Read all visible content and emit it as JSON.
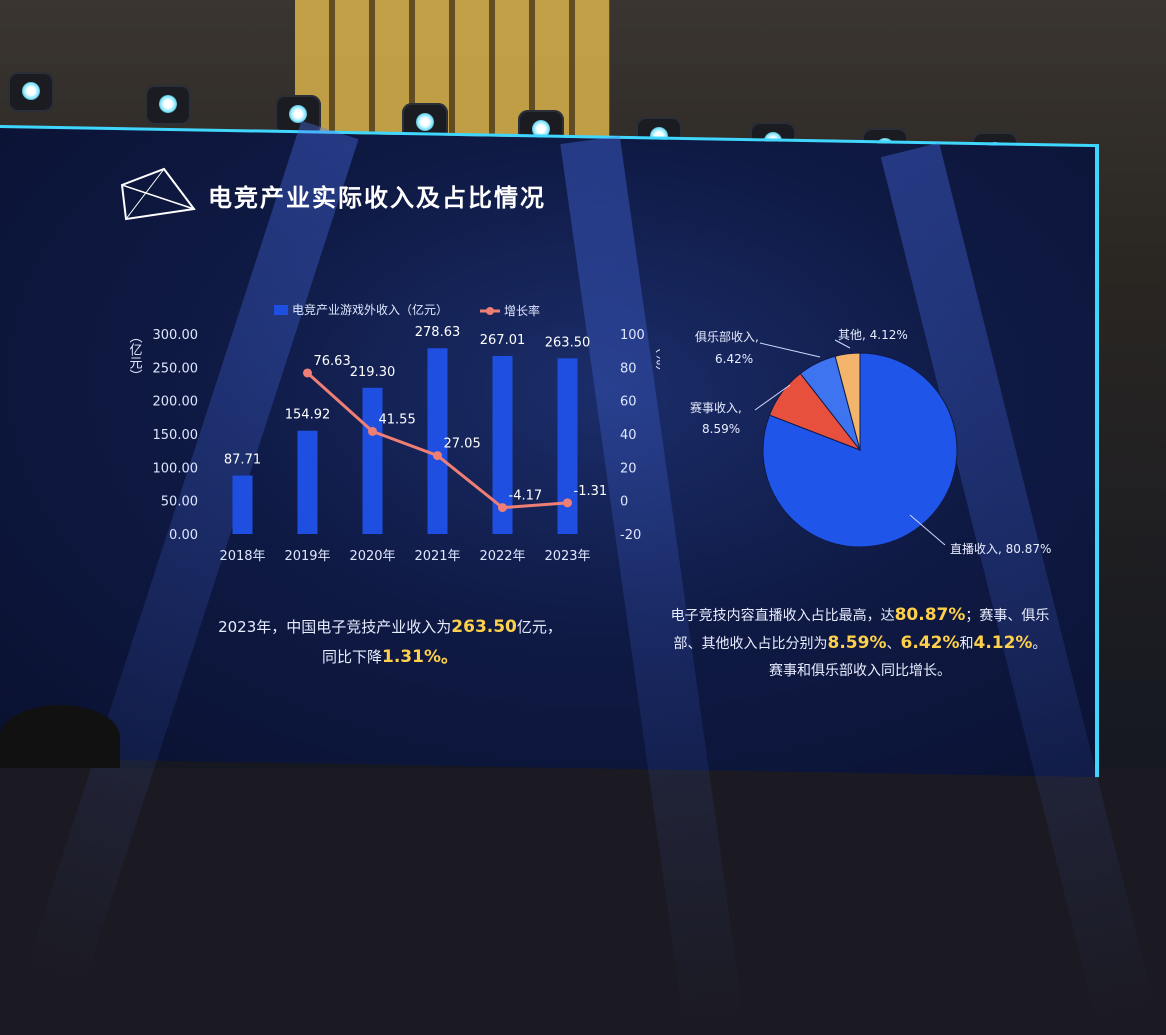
{
  "slide": {
    "title": "电竞产业实际收入及占比情况"
  },
  "chart_data": [
    {
      "type": "bar",
      "categories": [
        "2018年",
        "2019年",
        "2020年",
        "2021年",
        "2022年",
        "2023年"
      ],
      "series": [
        {
          "name": "电竞产业游戏外收入（亿元）",
          "type": "bar",
          "axis": "left",
          "values": [
            87.71,
            154.92,
            219.3,
            278.63,
            267.01,
            263.5
          ]
        },
        {
          "name": "增长率",
          "type": "line",
          "axis": "right",
          "values": [
            null,
            76.63,
            41.55,
            27.05,
            -4.17,
            -1.31
          ]
        }
      ],
      "bar_labels": [
        "87.71",
        "154.92",
        "219.30",
        "278.63",
        "267.01",
        "263.50"
      ],
      "line_labels": [
        "",
        "76.63",
        "41.55",
        "27.05",
        "-4.17",
        "-1.31"
      ],
      "ylabel": "（亿元）",
      "y2label": "（%）",
      "ylim": [
        0,
        300
      ],
      "y2lim": [
        -20,
        100
      ],
      "yticks": [
        "300.00",
        "250.00",
        "200.00",
        "150.00",
        "100.00",
        "50.00",
        "0.00"
      ],
      "y2ticks": [
        "100",
        "80",
        "60",
        "40",
        "20",
        "0",
        "-20"
      ],
      "colors": {
        "bar": "#1f4fe0",
        "line": "#ef7f74"
      }
    },
    {
      "type": "pie",
      "slices": [
        {
          "label": "直播收入, 80.87%",
          "value": 80.87,
          "color": "#1f55e8"
        },
        {
          "label": "赛事收入, 8.59%",
          "value": 8.59,
          "color": "#e8503e"
        },
        {
          "label": "俱乐部收入, 6.42%",
          "value": 6.42,
          "color": "#3f74f0"
        },
        {
          "label": "其他, 4.12%",
          "value": 4.12,
          "color": "#f3b46b"
        }
      ],
      "label_lines": {
        "live": "直播收入, 80.87%",
        "event": [
          "赛事收入,",
          "8.59%"
        ],
        "club": [
          "俱乐部收入,",
          "6.42%"
        ],
        "other": "其他, 4.12%"
      }
    }
  ],
  "captions": {
    "left_1a": "2023年，中国电子竞技产业收入为",
    "left_1b": "263.50",
    "left_1c": "亿元，",
    "left_2a": "同比下降",
    "left_2b": "1.31%。",
    "right_1a": "电子竞技内容直播收入占比最高，达",
    "right_1b": "80.87%",
    "right_1c": "；赛事、俱乐",
    "right_2a": "部、其他收入占比分别为",
    "right_2b": "8.59%",
    "right_2c": "、",
    "right_2d": "6.42%",
    "right_2e": "和",
    "right_2f": "4.12%",
    "right_2g": "。",
    "right_3": "赛事和俱乐部收入同比增长。"
  }
}
